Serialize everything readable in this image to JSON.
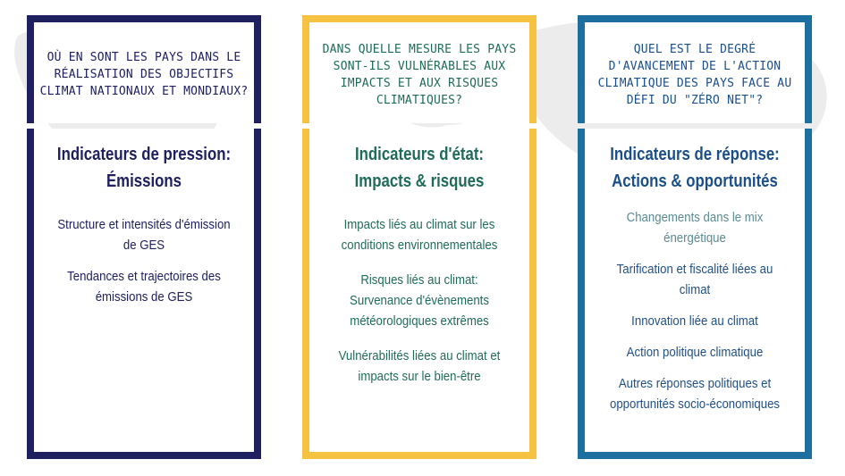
{
  "colors": {
    "pressure": "#1f2060",
    "state_border": "#f5c242",
    "state_text": "#1f6b5a",
    "response_border": "#1d6fa0",
    "response_text": "#1a4f8a"
  },
  "columns": [
    {
      "question": "Où en sont les pays dans le réalisation des objectifs climat nationaux et mondiaux?",
      "title_line1": "Indicateurs de pression:",
      "title_line2": "Émissions",
      "items": [
        "Structure et intensités d'émission de GES",
        "Tendances et trajectoires des émissions de GES"
      ]
    },
    {
      "question": "Dans quelle mesure les pays sont-ils vulnérables aux impacts et aux risques climatiques?",
      "title_line1": "Indicateurs d'état:",
      "title_line2": "Impacts & risques",
      "items": [
        "Impacts liés au climat sur les conditions environnementales",
        "Risques liés au climat: Survenance d'évènements météorologiques extrêmes",
        "Vulnérabilités liées au climat et impacts sur le bien-être"
      ]
    },
    {
      "question": "Quel est le degré d'avancement de l'action climatique des pays face au défi du \"zéro net\"?",
      "title_line1": "Indicateurs de réponse:",
      "title_line2": "Actions & opportunités",
      "items": [
        "Changements dans le mix énergétique",
        "Tarification et fiscalité liées au climat",
        "Innovation liée au climat",
        "Action politique climatique",
        "Autres réponses politiques et opportunités socio-économiques"
      ]
    }
  ]
}
